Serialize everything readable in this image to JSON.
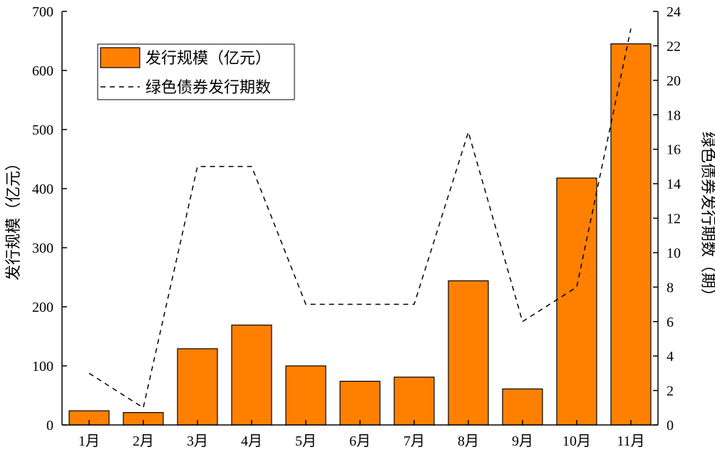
{
  "chart_data": {
    "type": "bar+line",
    "categories": [
      "1月",
      "2月",
      "3月",
      "4月",
      "5月",
      "6月",
      "7月",
      "8月",
      "9月",
      "10月",
      "11月"
    ],
    "series": [
      {
        "name": "发行规模（亿元）",
        "type": "bar",
        "axis": "left",
        "color": "#FF8000",
        "values": [
          24,
          21,
          129,
          169,
          100,
          74,
          81,
          244,
          61,
          418,
          645
        ]
      },
      {
        "name": "绿色债券发行期数",
        "type": "line",
        "axis": "right",
        "style": "dashed",
        "color": "#000000",
        "values": [
          3,
          1,
          15,
          15,
          7,
          7,
          7,
          17,
          6,
          8,
          23
        ]
      }
    ],
    "ylabel_left": "发行规模（亿元）",
    "ylabel_right": "绿色债券发行期数（期）",
    "ylim_left": [
      0,
      700
    ],
    "yticks_left": [
      0,
      100,
      200,
      300,
      400,
      500,
      600,
      700
    ],
    "ylim_right": [
      0,
      24
    ],
    "yticks_right": [
      0,
      2,
      4,
      6,
      8,
      10,
      12,
      14,
      16,
      18,
      20,
      22,
      24
    ],
    "legend_position": "top-left",
    "grid": false
  }
}
